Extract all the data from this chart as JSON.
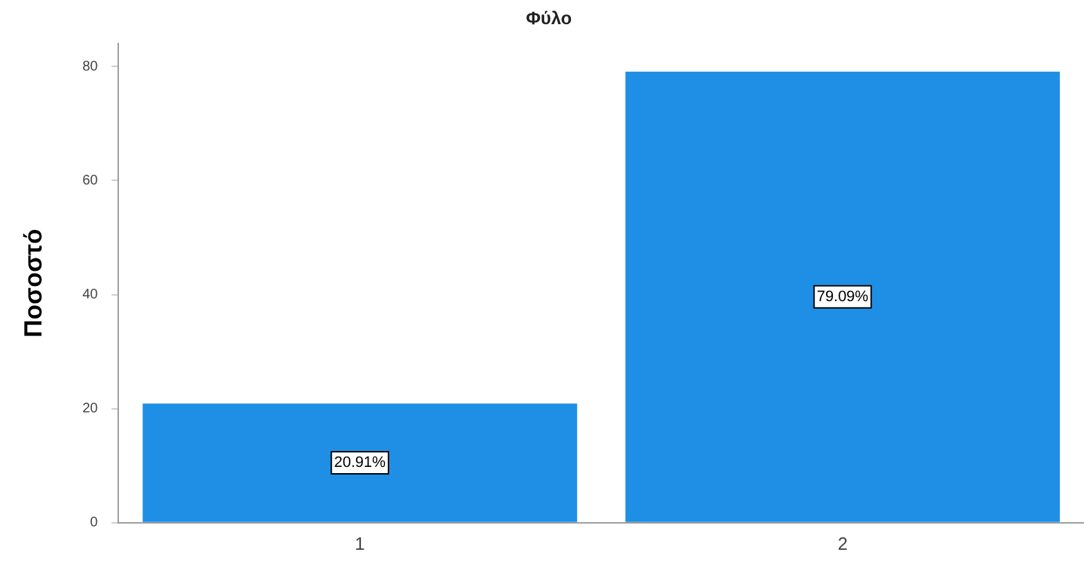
{
  "chart_data": {
    "type": "bar",
    "title": "Φύλο",
    "ylabel": "Ποσοστό",
    "categories": [
      "1",
      "2"
    ],
    "values": [
      20.91,
      79.09
    ],
    "value_labels": [
      "20.91%",
      "79.09%"
    ],
    "color": "#1f8fe5",
    "ylim": [
      0,
      84
    ],
    "yticks": [
      0,
      20,
      40,
      60,
      80
    ],
    "grid": false,
    "legend": false
  }
}
